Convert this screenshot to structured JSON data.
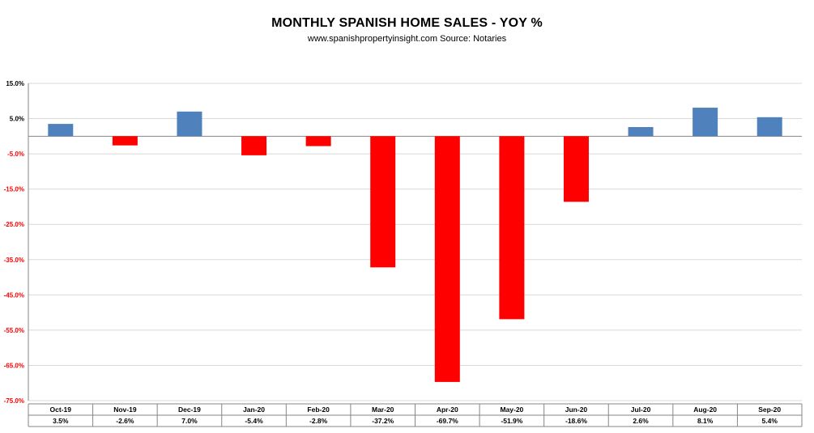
{
  "chart_data": {
    "type": "bar",
    "title": "MONTHLY SPANISH HOME SALES - YOY %",
    "subtitle": "www.spanishpropertyinsight.com Source:  Notaries",
    "categories": [
      "Oct-19",
      "Nov-19",
      "Dec-19",
      "Jan-20",
      "Feb-20",
      "Mar-20",
      "Apr-20",
      "May-20",
      "Jun-20",
      "Jul-20",
      "Aug-20",
      "Sep-20"
    ],
    "values": [
      3.5,
      -2.6,
      7.0,
      -5.4,
      -2.8,
      -37.2,
      -69.7,
      -51.9,
      -18.6,
      2.6,
      8.1,
      5.4
    ],
    "value_labels": [
      "3.5%",
      "-2.6%",
      "7.0%",
      "-5.4%",
      "-2.8%",
      "-37.2%",
      "-69.7%",
      "-51.9%",
      "-18.6%",
      "2.6%",
      "8.1%",
      "5.4%"
    ],
    "y_ticks": [
      15,
      5,
      -5,
      -15,
      -25,
      -35,
      -45,
      -55,
      -65,
      -75
    ],
    "y_tick_labels": [
      "15.0%",
      "5.0%",
      "-5.0%",
      "-15.0%",
      "-25.0%",
      "-35.0%",
      "-45.0%",
      "-55.0%",
      "-65.0%",
      "-75.0%"
    ],
    "ylim": [
      -75,
      15
    ],
    "grid": true,
    "data_table": true,
    "xlabel": "",
    "ylabel": ""
  },
  "colors": {
    "positive": "#4f81bd",
    "negative": "#ff0000",
    "grid": "#d9d9d9",
    "axis": "#868686",
    "negative_tick": "#ff0000",
    "positive_tick": "#000000"
  }
}
